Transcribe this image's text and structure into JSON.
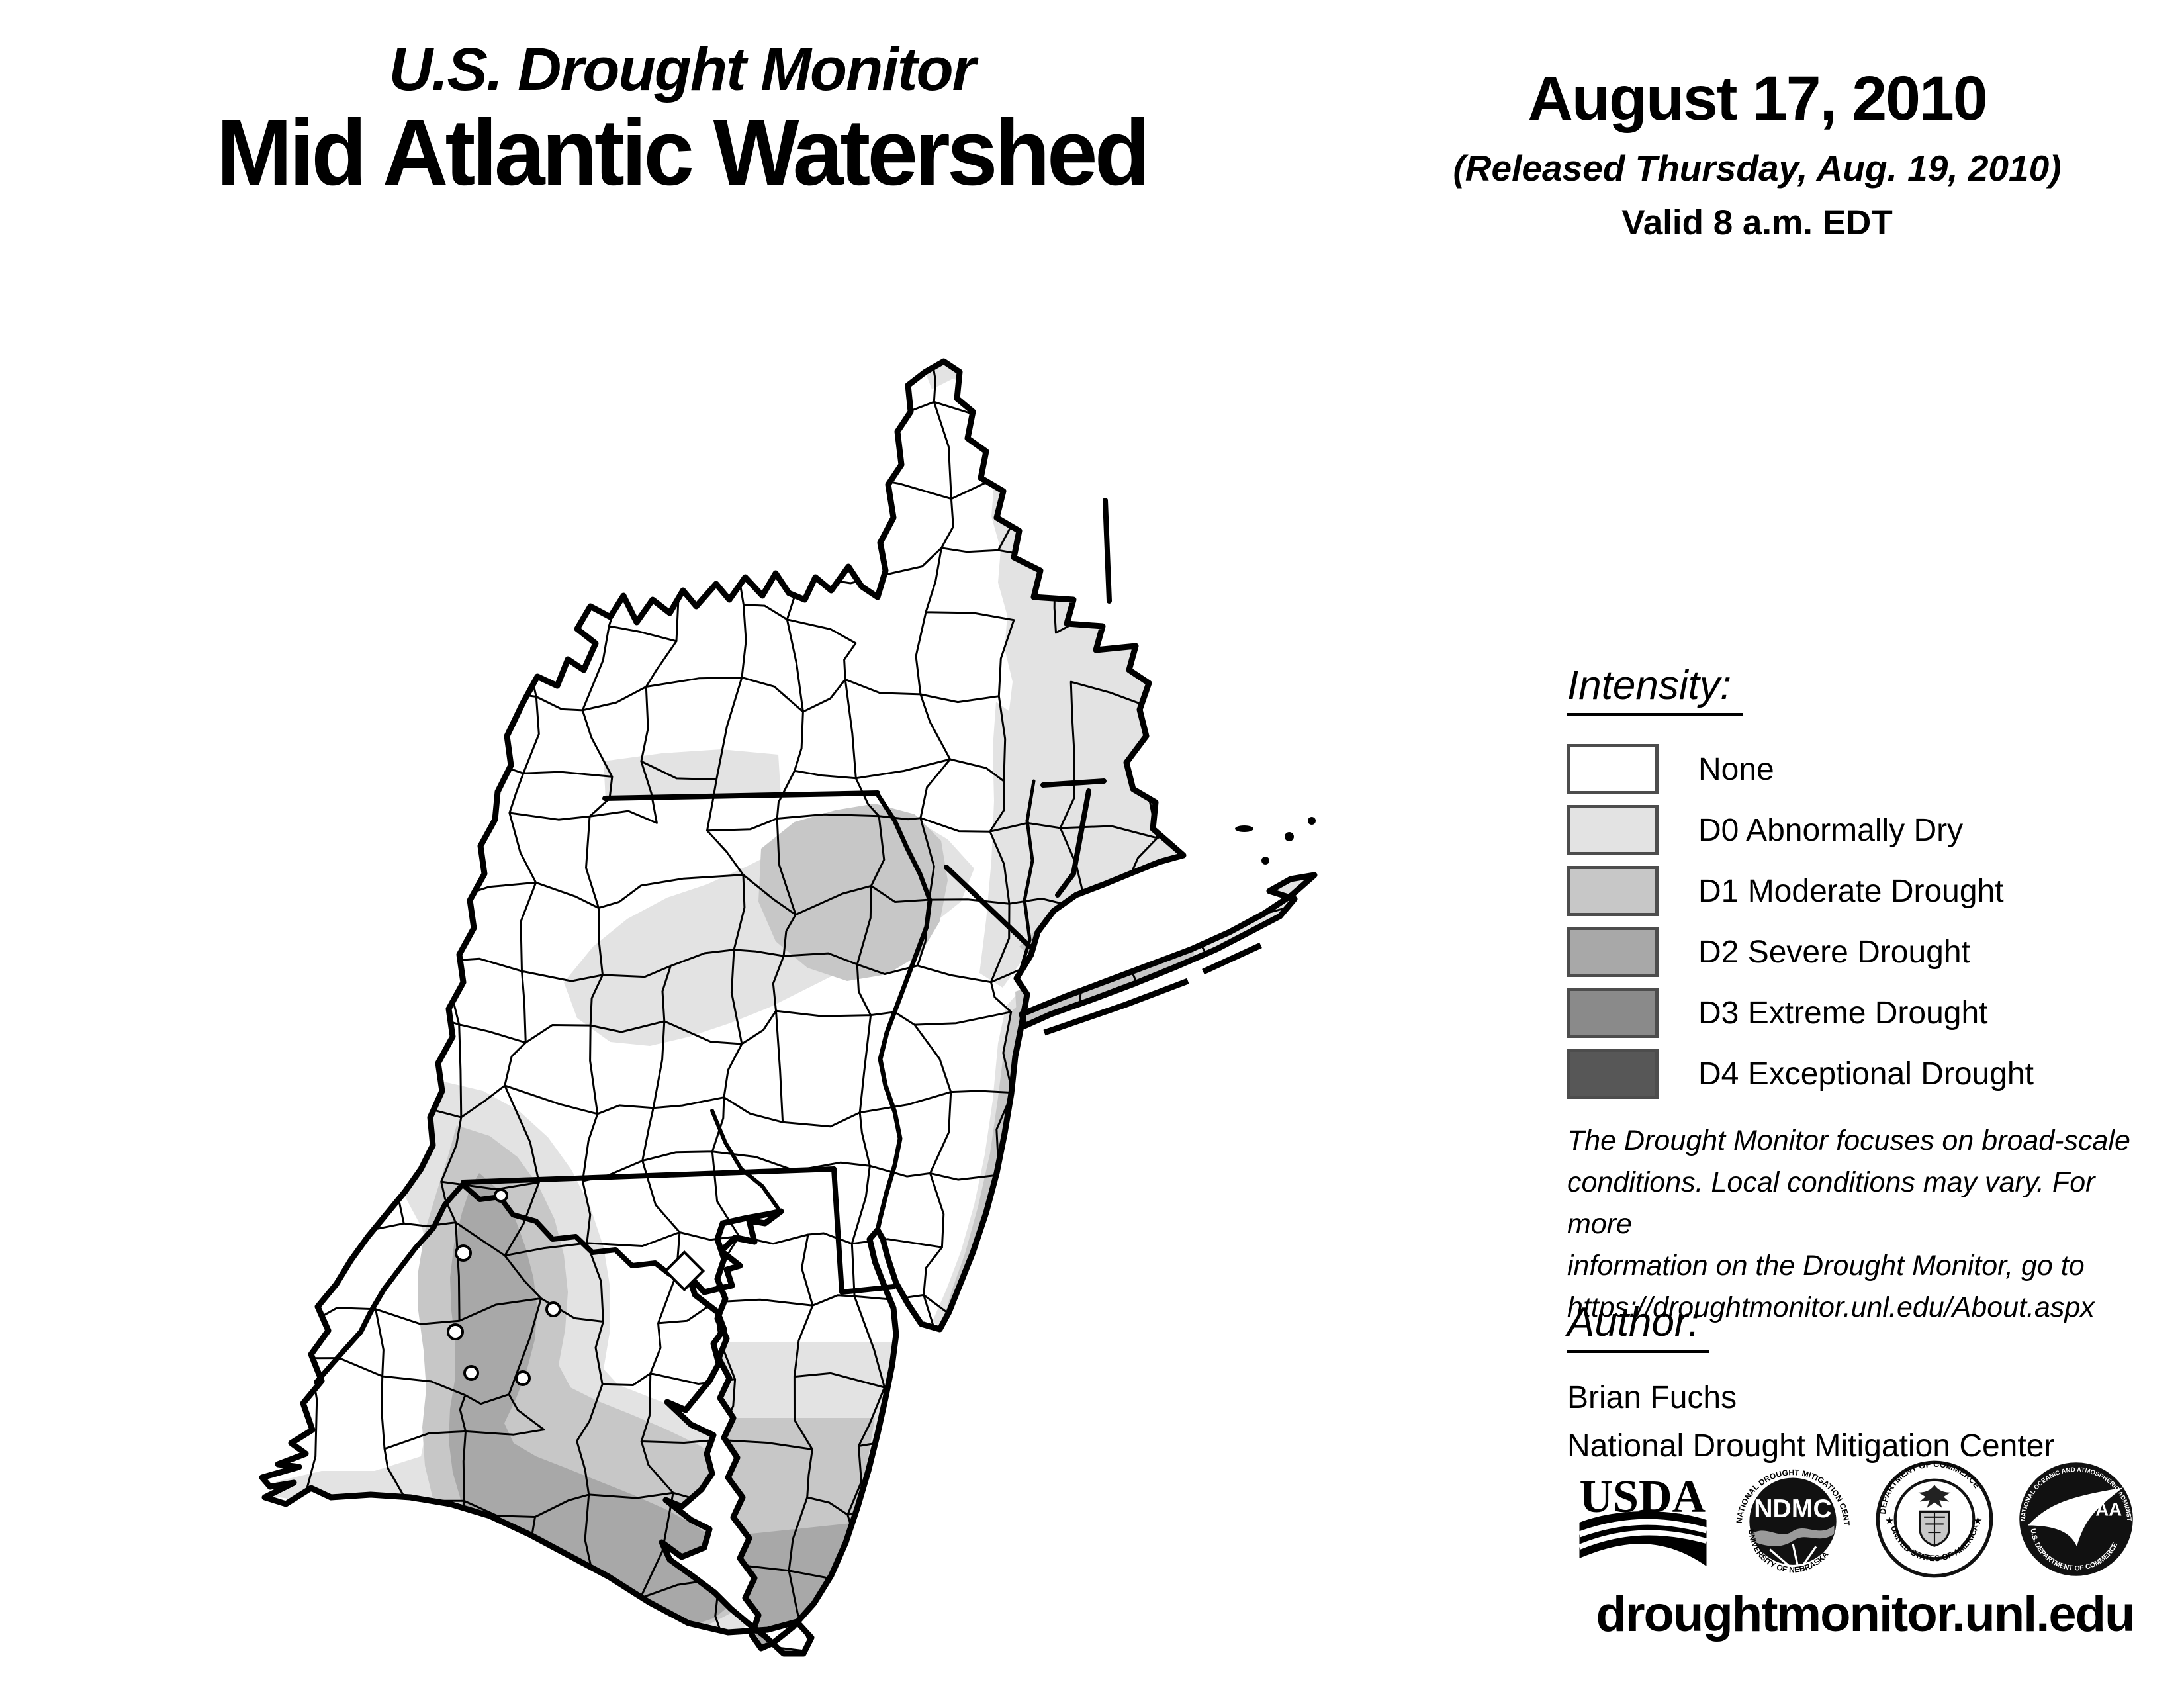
{
  "header": {
    "title_line1": "U.S. Drought Monitor",
    "title_line2": "Mid Atlantic Watershed"
  },
  "date_block": {
    "date": "August 17, 2010",
    "released": "(Released Thursday, Aug. 19, 2010)",
    "valid": "Valid 8 a.m. EDT"
  },
  "legend": {
    "heading": "Intensity:",
    "items": [
      {
        "label": "None",
        "color": "#ffffff"
      },
      {
        "label": "D0 Abnormally Dry",
        "color": "#e3e3e3"
      },
      {
        "label": "D1 Moderate Drought",
        "color": "#c7c7c7"
      },
      {
        "label": "D2 Severe Drought",
        "color": "#a8a8a8"
      },
      {
        "label": "D3 Extreme Drought",
        "color": "#8a8a8a"
      },
      {
        "label": "D4 Exceptional Drought",
        "color": "#575757"
      }
    ]
  },
  "palette": {
    "none": "#ffffff",
    "d0": "#e3e3e3",
    "d1": "#c7c7c7",
    "d2": "#a8a8a8",
    "d3": "#8a8a8a",
    "d4": "#575757",
    "swatch_border": "#4d4d4d"
  },
  "disclaimer": {
    "lines": [
      "The Drought Monitor focuses on broad-scale",
      "conditions. Local conditions may vary. For more",
      "information on the Drought Monitor, go to",
      "https://droughtmonitor.unl.edu/About.aspx"
    ]
  },
  "author_block": {
    "heading": "Author:",
    "name": "Brian Fuchs",
    "org": "National Drought Mitigation Center"
  },
  "logos": {
    "usda": {
      "text": "USDA"
    },
    "ndmc": {
      "text": "NDMC",
      "ring_top": "NATIONAL DROUGHT MITIGATION CENTER",
      "ring_bottom": "UNIVERSITY OF NEBRASKA"
    },
    "doc": {
      "ring_top": "DEPARTMENT OF COMMERCE",
      "ring_bottom": "UNITED STATES OF AMERICA"
    },
    "noaa": {
      "text": "NOAA",
      "ring_top": "NATIONAL OCEANIC AND ATMOSPHERIC ADMINISTRATION",
      "ring_bottom": "U.S. DEPARTMENT OF COMMERCE"
    }
  },
  "footer": {
    "url": "droughtmonitor.unl.edu"
  }
}
